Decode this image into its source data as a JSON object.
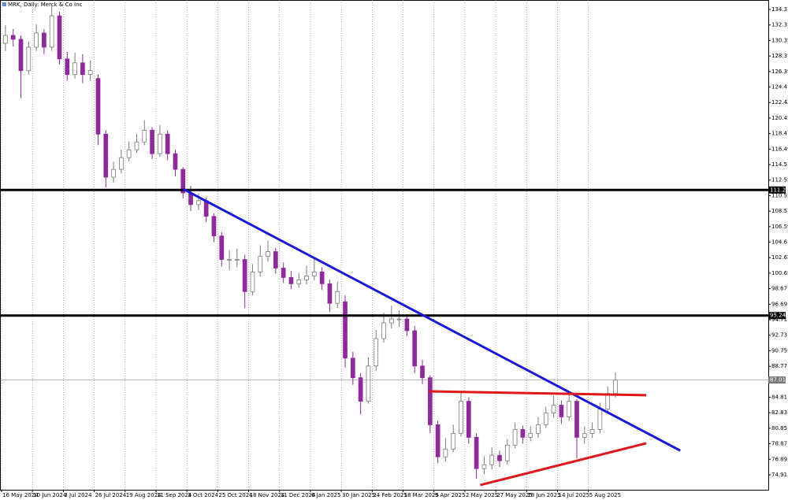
{
  "chart_data": {
    "type": "candlestick",
    "title": "MRK, Daily: Merck & Co Inc",
    "up_color": "#7a7a7a",
    "down_color": "#8e2a9c",
    "open": [
      130.0,
      131.0,
      130.5,
      126.5,
      129.5,
      131.3,
      129.5,
      133.5,
      128.0,
      126.0,
      127.5,
      126.0,
      125.5,
      118.4,
      112.9,
      113.9,
      115.4,
      116.4,
      117.4,
      118.9,
      115.9,
      118.4,
      115.9,
      113.9,
      110.9,
      109.4,
      109.9,
      107.9,
      105.4,
      102.4,
      102.4,
      102.4,
      98.3,
      100.8,
      102.8,
      103.4,
      101.3,
      100.1,
      99.3,
      99.8,
      100.3,
      100.8,
      99.3,
      96.8,
      97.0,
      89.8,
      87.3,
      84.3,
      88.8,
      92.3,
      94.3,
      94.8,
      94.8,
      93.3,
      88.8,
      87.3,
      81.3,
      77.2,
      78.2,
      80.2,
      84.3,
      79.7,
      75.7,
      76.2,
      77.4,
      76.7,
      78.7,
      80.7,
      79.7,
      80.2,
      81.3,
      82.8,
      83.8,
      82.3,
      84.3,
      79.7,
      80.2,
      80.7,
      83.3,
      85.3
    ],
    "high": [
      132.3,
      131.8,
      131.0,
      130.2,
      132.4,
      131.8,
      134.7,
      134.0,
      128.9,
      128.8,
      128.6,
      127.8,
      126.0,
      118.9,
      114.9,
      116.4,
      117.5,
      118.4,
      120.2,
      119.3,
      119.6,
      118.9,
      116.4,
      114.2,
      111.8,
      110.8,
      110.3,
      108.3,
      105.9,
      103.6,
      103.8,
      103.0,
      101.8,
      104.2,
      104.8,
      103.9,
      102.0,
      100.9,
      100.7,
      101.6,
      102.6,
      101.4,
      99.8,
      99.6,
      97.8,
      90.6,
      87.9,
      89.9,
      93.4,
      95.6,
      96.5,
      95.9,
      95.4,
      93.9,
      89.6,
      87.6,
      81.8,
      79.6,
      81.3,
      85.6,
      84.8,
      80.2,
      77.3,
      78.4,
      78.0,
      79.5,
      81.6,
      81.2,
      81.1,
      82.3,
      83.6,
      85.0,
      84.4,
      85.1,
      84.6,
      81.1,
      81.6,
      84.1,
      86.2,
      88.0
    ],
    "low": [
      129.0,
      129.6,
      123.0,
      126.0,
      129.0,
      128.6,
      129.0,
      127.3,
      125.2,
      125.5,
      124.9,
      125.2,
      117.0,
      111.6,
      112.2,
      113.4,
      114.9,
      116.0,
      117.0,
      115.2,
      115.5,
      115.1,
      113.0,
      110.2,
      108.6,
      108.7,
      107.2,
      104.6,
      101.5,
      101.0,
      101.4,
      96.2,
      97.8,
      100.2,
      102.1,
      100.6,
      99.4,
      98.6,
      98.8,
      99.2,
      99.7,
      98.5,
      95.7,
      96.2,
      88.6,
      86.4,
      82.6,
      84.0,
      88.2,
      91.8,
      93.6,
      93.8,
      92.6,
      87.9,
      86.5,
      80.2,
      76.4,
      76.6,
      77.8,
      79.8,
      78.9,
      74.4,
      75.0,
      75.6,
      75.9,
      76.2,
      78.3,
      78.9,
      79.2,
      79.6,
      80.9,
      82.2,
      81.4,
      81.8,
      77.0,
      78.9,
      79.6,
      80.2,
      82.9,
      84.8
    ],
    "close": [
      131.0,
      130.5,
      126.5,
      129.5,
      131.3,
      129.5,
      133.5,
      128.0,
      126.0,
      127.5,
      126.0,
      126.5,
      118.4,
      112.9,
      113.9,
      115.4,
      116.4,
      117.4,
      118.9,
      115.9,
      118.4,
      115.9,
      113.9,
      110.9,
      109.4,
      109.9,
      107.9,
      105.4,
      102.4,
      102.4,
      102.4,
      98.3,
      100.8,
      102.8,
      103.4,
      101.3,
      100.1,
      99.3,
      99.8,
      100.3,
      100.8,
      99.3,
      96.8,
      98.3,
      89.8,
      87.3,
      84.3,
      88.8,
      92.3,
      94.3,
      94.8,
      94.8,
      93.3,
      88.8,
      87.3,
      81.3,
      77.2,
      78.2,
      80.2,
      84.3,
      79.7,
      75.7,
      76.2,
      77.4,
      76.7,
      78.7,
      80.7,
      79.7,
      80.2,
      81.3,
      82.8,
      83.8,
      82.3,
      84.3,
      79.7,
      80.2,
      80.7,
      83.3,
      85.3,
      87.0
    ],
    "xlim": [
      0,
      99.3
    ],
    "xticks": [
      {
        "value": 0,
        "label": "16 May 2024"
      },
      {
        "value": 4,
        "label": "10 Jun 2024"
      },
      {
        "value": 8,
        "label": "3 Jul 2024"
      },
      {
        "value": 12,
        "label": "26 Jul 2024"
      },
      {
        "value": 16,
        "label": "19 Aug 2024"
      },
      {
        "value": 20,
        "label": "11 Sep 2024"
      },
      {
        "value": 24,
        "label": "3 Oct 2024"
      },
      {
        "value": 28,
        "label": "25 Oct 2024"
      },
      {
        "value": 32,
        "label": "18 Nov 2024"
      },
      {
        "value": 36,
        "label": "11 Dec 2024"
      },
      {
        "value": 40,
        "label": "6 Jan 2025"
      },
      {
        "value": 44,
        "label": "30 Jan 2025"
      },
      {
        "value": 48,
        "label": "24 Feb 2025"
      },
      {
        "value": 52,
        "label": "18 Mar 2025"
      },
      {
        "value": 56,
        "label": "9 Apr 2025"
      },
      {
        "value": 60,
        "label": "2 May 2025"
      },
      {
        "value": 64,
        "label": "27 May 2025"
      },
      {
        "value": 68,
        "label": "18 Jun 2025"
      },
      {
        "value": 72,
        "label": "14 Jul 2025"
      },
      {
        "value": 76,
        "label": "5 Aug 2025"
      }
    ],
    "ylim": [
      73.0,
      135.52
    ],
    "yticks": [
      134.31,
      132.33,
      130.35,
      128.37,
      126.39,
      124.41,
      122.43,
      120.45,
      118.47,
      116.49,
      114.51,
      112.53,
      110.55,
      108.57,
      106.59,
      104.61,
      102.63,
      100.65,
      98.67,
      96.69,
      94.71,
      92.73,
      90.75,
      88.77,
      84.81,
      82.83,
      80.85,
      78.87,
      76.89,
      74.91
    ],
    "levels": [
      {
        "value": 111.27,
        "color": "#000000",
        "width": 3
      },
      {
        "value": 95.24,
        "color": "#000000",
        "width": 3
      },
      {
        "value": 87.01,
        "color": "#777777",
        "width": 0.6
      }
    ],
    "trendlines": [
      {
        "color": "#1a1ad6",
        "x": [
          23.5,
          87.9
        ],
        "y": [
          111.4,
          78.0
        ]
      },
      {
        "color": "#e01818",
        "x": [
          55.4,
          83.5
        ],
        "y": [
          85.57,
          85.07
        ]
      },
      {
        "color": "#e01818",
        "x": [
          62.0,
          83.5
        ],
        "y": [
          73.61,
          78.94
        ]
      }
    ]
  }
}
